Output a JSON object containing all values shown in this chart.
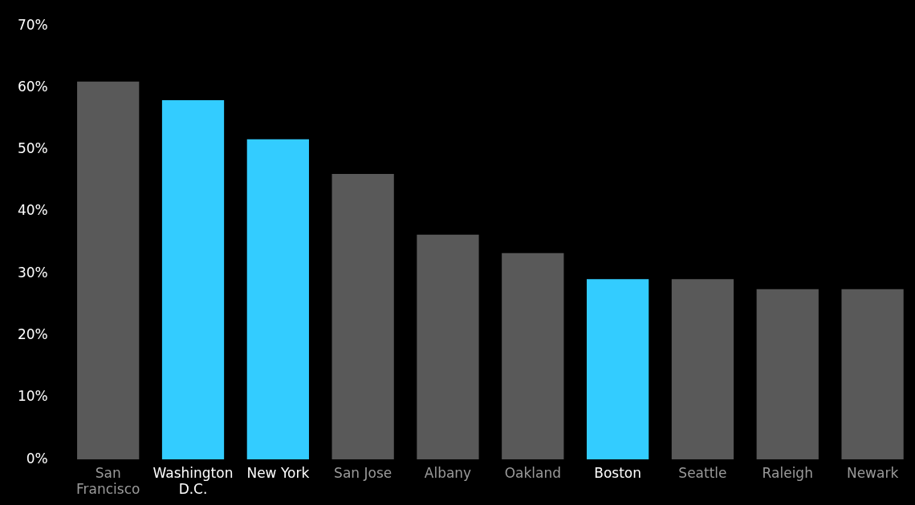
{
  "chart_data": {
    "type": "bar",
    "categories": [
      "San Francisco",
      "Washington D.C.",
      "New York",
      "San Jose",
      "Albany",
      "Oakland",
      "Boston",
      "Seattle",
      "Raleigh",
      "Newark"
    ],
    "values": [
      61,
      58,
      51.7,
      46.1,
      36.3,
      33.3,
      29.1,
      29.1,
      27.5,
      27.5
    ],
    "colors": [
      "#595959",
      "#33ccff",
      "#33ccff",
      "#595959",
      "#595959",
      "#595959",
      "#33ccff",
      "#595959",
      "#595959",
      "#595959"
    ],
    "ylim": [
      0,
      70
    ],
    "yticks": [
      {
        "value": 0,
        "label": "0%"
      },
      {
        "value": 10,
        "label": "10%"
      },
      {
        "value": 20,
        "label": "20%"
      },
      {
        "value": 30,
        "label": "30%"
      },
      {
        "value": 40,
        "label": "40%"
      },
      {
        "value": 50,
        "label": "50%"
      },
      {
        "value": 60,
        "label": "60%"
      },
      {
        "value": 70,
        "label": "70%"
      }
    ],
    "grid": false,
    "legend": false
  }
}
